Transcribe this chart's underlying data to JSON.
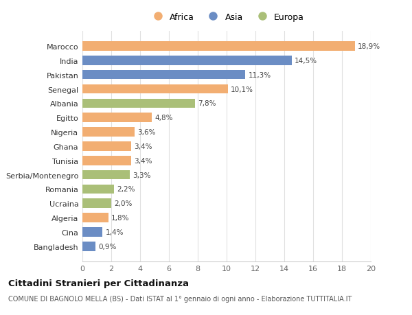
{
  "categories": [
    "Bangladesh",
    "Cina",
    "Algeria",
    "Ucraina",
    "Romania",
    "Serbia/Montenegro",
    "Tunisia",
    "Ghana",
    "Nigeria",
    "Egitto",
    "Albania",
    "Senegal",
    "Pakistan",
    "India",
    "Marocco"
  ],
  "values": [
    0.9,
    1.4,
    1.8,
    2.0,
    2.2,
    3.3,
    3.4,
    3.4,
    3.6,
    4.8,
    7.8,
    10.1,
    11.3,
    14.5,
    18.9
  ],
  "labels": [
    "0,9%",
    "1,4%",
    "1,8%",
    "2,0%",
    "2,2%",
    "3,3%",
    "3,4%",
    "3,4%",
    "3,6%",
    "4,8%",
    "7,8%",
    "10,1%",
    "11,3%",
    "14,5%",
    "18,9%"
  ],
  "continents": [
    "Asia",
    "Asia",
    "Africa",
    "Europa",
    "Europa",
    "Europa",
    "Africa",
    "Africa",
    "Africa",
    "Africa",
    "Europa",
    "Africa",
    "Asia",
    "Asia",
    "Africa"
  ],
  "colors": {
    "Africa": "#F2AE72",
    "Asia": "#6B8DC4",
    "Europa": "#AABF78"
  },
  "legend_labels": [
    "Africa",
    "Asia",
    "Europa"
  ],
  "title": "Cittadini Stranieri per Cittadinanza",
  "subtitle": "COMUNE DI BAGNOLO MELLA (BS) - Dati ISTAT al 1° gennaio di ogni anno - Elaborazione TUTTITALIA.IT",
  "xlim": [
    0,
    20
  ],
  "xticks": [
    0,
    2,
    4,
    6,
    8,
    10,
    12,
    14,
    16,
    18,
    20
  ],
  "background_color": "#ffffff",
  "grid_color": "#e0e0e0"
}
